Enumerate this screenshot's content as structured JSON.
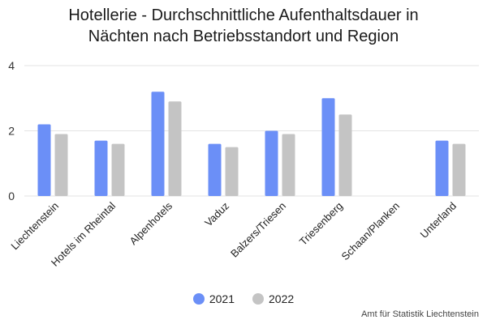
{
  "chart_data": {
    "type": "bar",
    "title_lines": [
      "Hotellerie - Durchschnittliche Aufenthaltsdauer in",
      "Nächten nach Betriebsstandort und Region"
    ],
    "categories": [
      "Liechtenstein",
      "Hotels im Rheintal",
      "Alpenhotels",
      "Vaduz",
      "Balzers/Triesen",
      "Triesenberg",
      "Schaan/Planken",
      "Unterland"
    ],
    "series": [
      {
        "name": "2021",
        "color": "#6b8ff7",
        "values": [
          2.2,
          1.7,
          3.2,
          1.6,
          2.0,
          3.0,
          null,
          1.7
        ]
      },
      {
        "name": "2022",
        "color": "#c4c4c4",
        "values": [
          1.9,
          1.6,
          2.9,
          1.5,
          1.9,
          2.5,
          null,
          1.6
        ]
      }
    ],
    "ylim": [
      0,
      4
    ],
    "yticks": [
      "0",
      "2",
      "4"
    ],
    "grid": true,
    "legend_position": "bottom-center",
    "source": "Amt für Statistik Liechtenstein"
  }
}
